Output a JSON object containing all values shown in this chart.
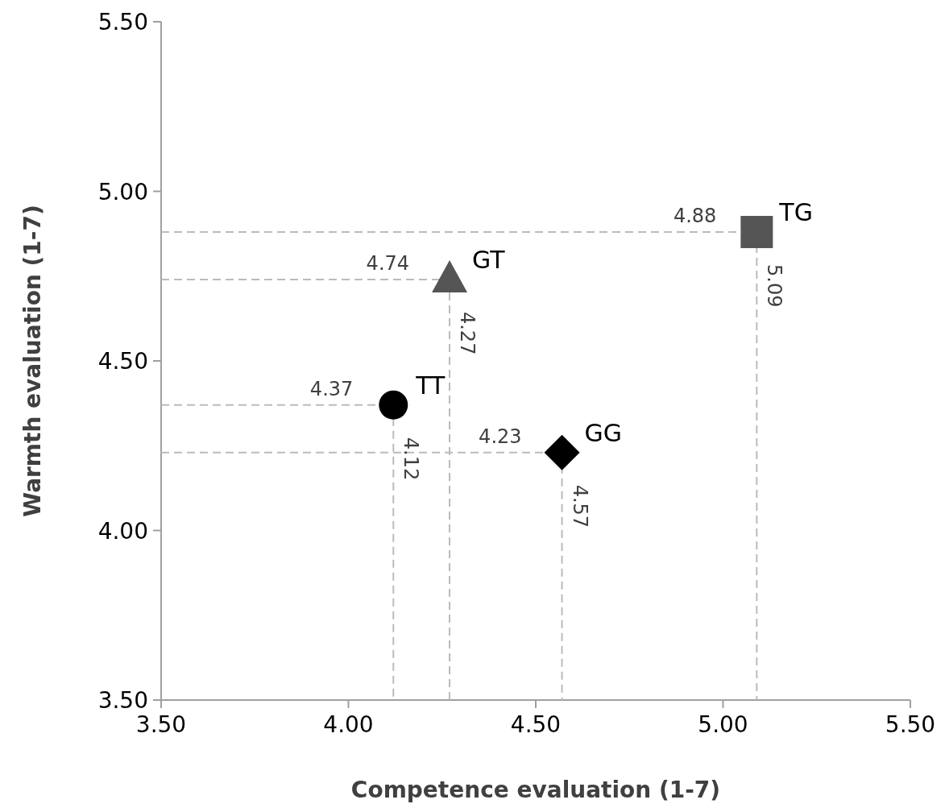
{
  "chart_data": {
    "type": "scatter",
    "xlabel": "Competence evaluation (1-7)",
    "ylabel": "Warmth evaluation (1-7)",
    "xlim": [
      3.5,
      5.5
    ],
    "ylim": [
      3.5,
      5.5
    ],
    "xticks": [
      {
        "value": 3.5,
        "label": "3.50"
      },
      {
        "value": 4,
        "label": "4.00"
      },
      {
        "value": 4.5,
        "label": "4.50"
      },
      {
        "value": 5,
        "label": "5.00"
      },
      {
        "value": 5.5,
        "label": "5.50"
      }
    ],
    "yticks": [
      {
        "value": 3.5,
        "label": "3.50"
      },
      {
        "value": 4,
        "label": "4.00"
      },
      {
        "value": 4.5,
        "label": "4.50"
      },
      {
        "value": 5,
        "label": "5.00"
      },
      {
        "value": 5.5,
        "label": "5.50"
      }
    ],
    "grid": false,
    "data_labels": true,
    "annotations": [
      {
        "text": "4.12",
        "x": 4.12,
        "y": 4.37
      },
      {
        "text": "4.27",
        "x": 4.27,
        "y": 4.74
      },
      {
        "text": "4.57",
        "x": 4.57,
        "y": 4.23
      },
      {
        "text": "5.09",
        "x": 5.09,
        "y": 4.88
      }
    ],
    "series": [
      {
        "name": "TT",
        "color": "#000000",
        "marker": "circle",
        "x": [
          4.12
        ],
        "values": [
          4.37
        ]
      },
      {
        "name": "GT",
        "color": "#555555",
        "marker": "triangle",
        "x": [
          4.27
        ],
        "values": [
          4.74
        ]
      },
      {
        "name": "GG",
        "color": "#000000",
        "marker": "diamond",
        "x": [
          4.57
        ],
        "values": [
          4.23
        ]
      },
      {
        "name": "TG",
        "color": "#555555",
        "marker": "square",
        "x": [
          5.09
        ],
        "values": [
          4.88
        ]
      }
    ]
  }
}
